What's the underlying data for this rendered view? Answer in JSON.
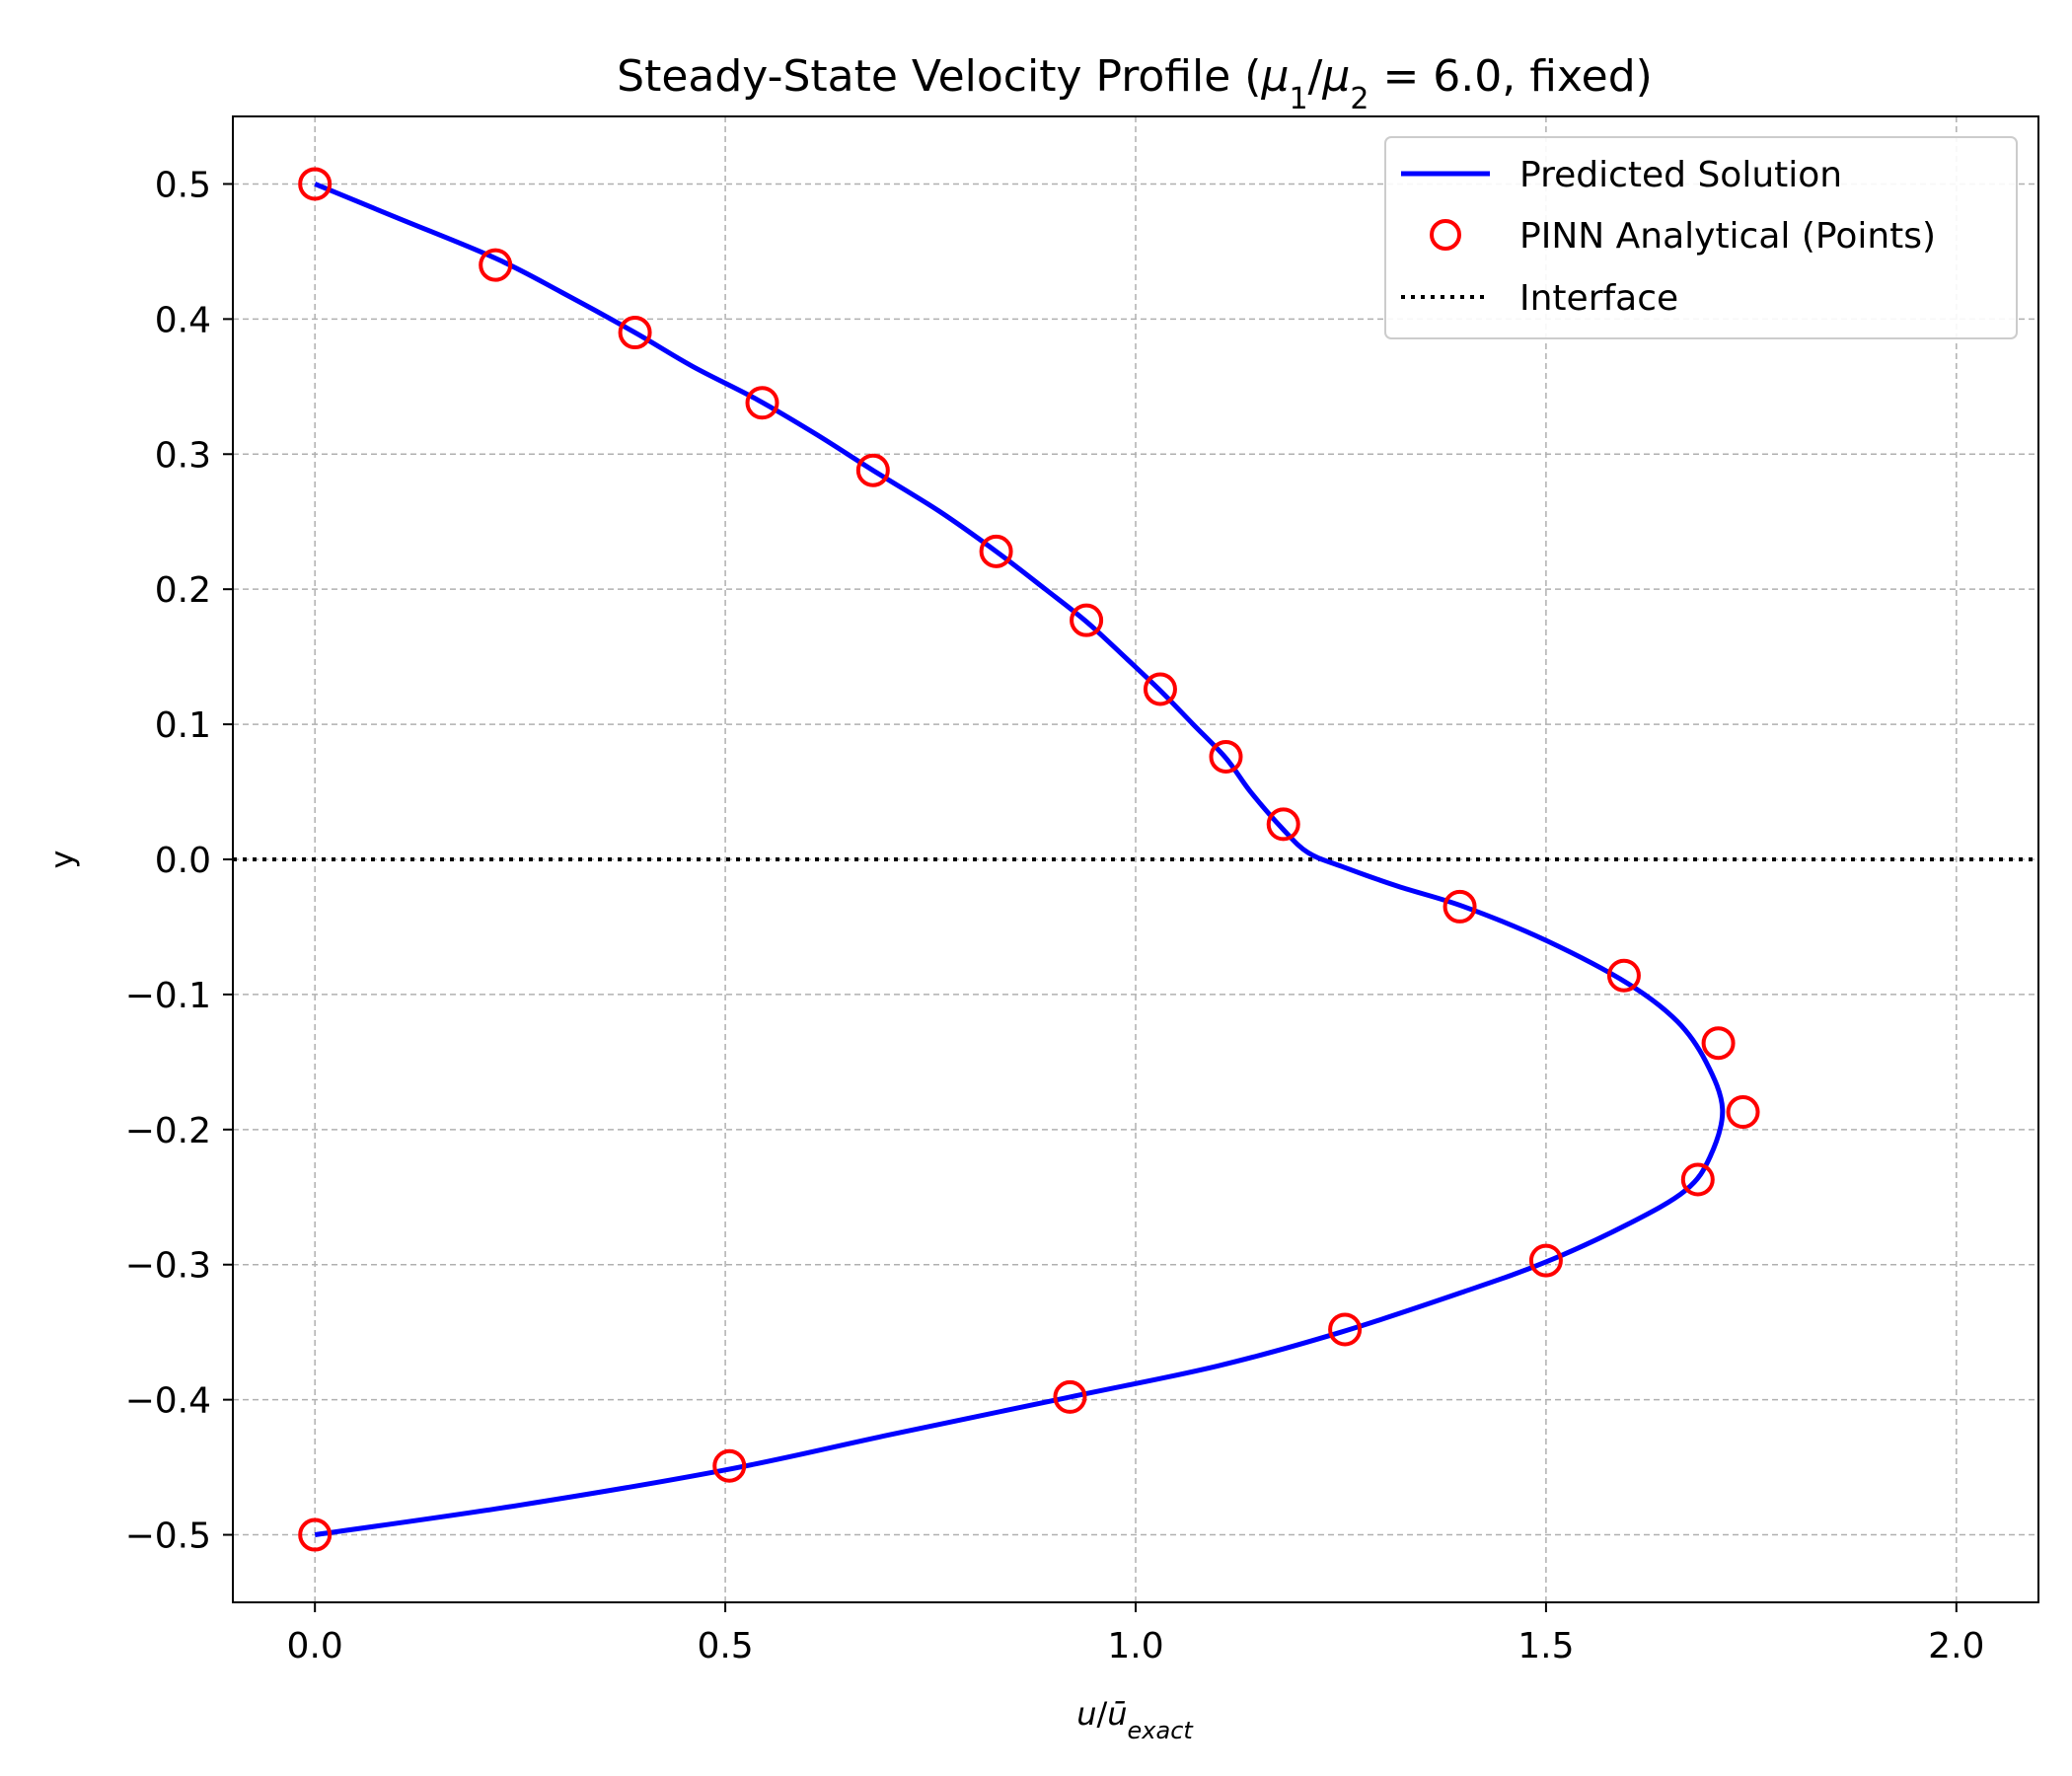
{
  "chart_data": {
    "type": "line",
    "title_parts": {
      "prefix": "Steady-State Velocity Profile (",
      "mu": "μ",
      "one": "1",
      "slash": "/",
      "two": "2",
      "eq": " = 6.0",
      "suffix": ", fixed)"
    },
    "xlabel_parts": {
      "u": "u",
      "slash": "/",
      "ubar": "ū",
      "sub": "exact"
    },
    "ylabel": "y",
    "xlim": [
      -0.1,
      2.1
    ],
    "ylim": [
      -0.55,
      0.55
    ],
    "x_ticks": [
      0.0,
      0.5,
      1.0,
      1.5,
      2.0
    ],
    "x_tick_labels": [
      "0.0",
      "0.5",
      "1.0",
      "1.5",
      "2.0"
    ],
    "y_ticks": [
      0.5,
      0.4,
      0.3,
      0.2,
      0.1,
      0.0,
      -0.1,
      -0.2,
      -0.3,
      -0.4,
      -0.5
    ],
    "y_tick_labels": [
      "0.5",
      "0.4",
      "0.3",
      "0.2",
      "0.1",
      "0.0",
      "−0.1",
      "−0.2",
      "−0.3",
      "−0.4",
      "−0.5"
    ],
    "grid": true,
    "legend_position": "top-right",
    "series": [
      {
        "name": "Predicted Solution",
        "style": "line",
        "color": "#0000ff",
        "points": [
          [
            0.0,
            0.5
          ],
          [
            0.1,
            0.475
          ],
          [
            0.22,
            0.445
          ],
          [
            0.3,
            0.42
          ],
          [
            0.39,
            0.39
          ],
          [
            0.46,
            0.365
          ],
          [
            0.54,
            0.34
          ],
          [
            0.61,
            0.315
          ],
          [
            0.68,
            0.288
          ],
          [
            0.76,
            0.258
          ],
          [
            0.83,
            0.228
          ],
          [
            0.89,
            0.2
          ],
          [
            0.94,
            0.176
          ],
          [
            0.99,
            0.148
          ],
          [
            1.03,
            0.125
          ],
          [
            1.07,
            0.1
          ],
          [
            1.11,
            0.075
          ],
          [
            1.14,
            0.05
          ],
          [
            1.18,
            0.022
          ],
          [
            1.21,
            0.005
          ],
          [
            1.25,
            -0.005
          ],
          [
            1.32,
            -0.02
          ],
          [
            1.4,
            -0.035
          ],
          [
            1.5,
            -0.06
          ],
          [
            1.6,
            -0.092
          ],
          [
            1.66,
            -0.12
          ],
          [
            1.695,
            -0.15
          ],
          [
            1.715,
            -0.185
          ],
          [
            1.7,
            -0.22
          ],
          [
            1.67,
            -0.245
          ],
          [
            1.6,
            -0.27
          ],
          [
            1.5,
            -0.298
          ],
          [
            1.4,
            -0.32
          ],
          [
            1.25,
            -0.35
          ],
          [
            1.1,
            -0.375
          ],
          [
            0.92,
            -0.398
          ],
          [
            0.7,
            -0.426
          ],
          [
            0.5,
            -0.452
          ],
          [
            0.25,
            -0.478
          ],
          [
            0.0,
            -0.5
          ]
        ]
      },
      {
        "name": "PINN Analytical (Points)",
        "style": "markers",
        "color": "#ff0000",
        "points": [
          [
            0.0,
            0.5
          ],
          [
            0.22,
            0.44
          ],
          [
            0.39,
            0.39
          ],
          [
            0.545,
            0.338
          ],
          [
            0.68,
            0.288
          ],
          [
            0.83,
            0.228
          ],
          [
            0.94,
            0.177
          ],
          [
            1.03,
            0.126
          ],
          [
            1.11,
            0.076
          ],
          [
            1.18,
            0.026
          ],
          [
            1.395,
            -0.035
          ],
          [
            1.595,
            -0.086
          ],
          [
            1.71,
            -0.136
          ],
          [
            1.74,
            -0.187
          ],
          [
            1.685,
            -0.237
          ],
          [
            1.5,
            -0.297
          ],
          [
            1.255,
            -0.348
          ],
          [
            0.92,
            -0.398
          ],
          [
            0.505,
            -0.449
          ],
          [
            0.0,
            -0.5
          ]
        ]
      },
      {
        "name": "Interface",
        "style": "dotted-hline",
        "color": "#000000",
        "y": 0.0
      }
    ]
  }
}
